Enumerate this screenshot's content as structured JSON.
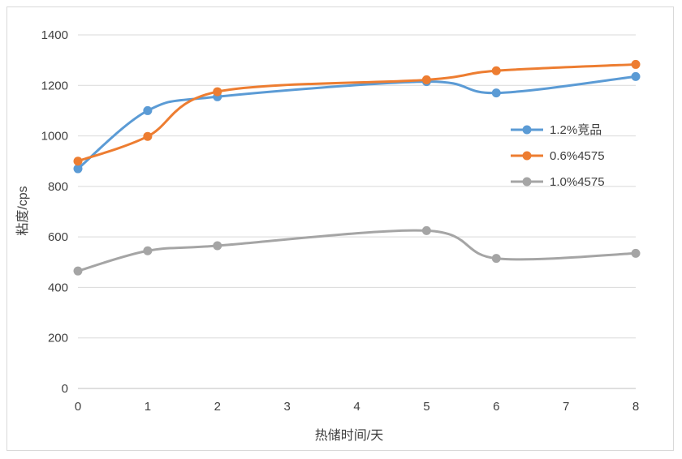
{
  "chart_data": {
    "type": "line",
    "title": "",
    "xlabel": "热储时间/天",
    "ylabel": "粘度/cps",
    "x_ticks": [
      0,
      1,
      2,
      3,
      4,
      5,
      6,
      7,
      8
    ],
    "xlim": [
      0,
      8
    ],
    "y_ticks": [
      0,
      200,
      400,
      600,
      800,
      1000,
      1200,
      1400
    ],
    "ylim": [
      0,
      1400
    ],
    "grid": "horizontal",
    "legend_position": "right",
    "series": [
      {
        "name": "1.2%竞品",
        "color": "#5B9BD5",
        "x": [
          0,
          1,
          2,
          5,
          6,
          8
        ],
        "y": [
          870,
          1100,
          1155,
          1215,
          1170,
          1235
        ]
      },
      {
        "name": "0.6%4575",
        "color": "#ED7D31",
        "x": [
          0,
          1,
          2,
          5,
          6,
          8
        ],
        "y": [
          900,
          998,
          1175,
          1222,
          1258,
          1283
        ]
      },
      {
        "name": "1.0%4575",
        "color": "#A5A5A5",
        "x": [
          0,
          1,
          2,
          5,
          6,
          8
        ],
        "y": [
          465,
          545,
          565,
          625,
          515,
          535
        ]
      }
    ]
  }
}
